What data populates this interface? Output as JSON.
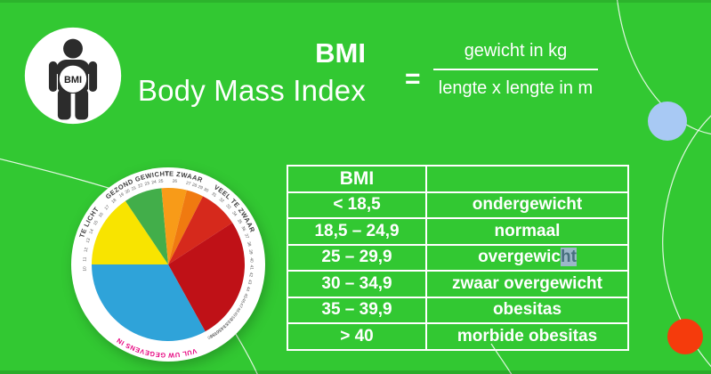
{
  "colors": {
    "background": "#32c832",
    "icon_person": "#2c2c2c",
    "decor_blue": "#a8c9f4",
    "decor_red": "#f53b0c",
    "highlight_bg": "#9bb7c8",
    "highlight_text": "#47707f",
    "pink": "#e6007e"
  },
  "header": {
    "icon_label": "BMI",
    "title_abbr": "BMI",
    "title_full": "Body Mass Index",
    "equals": "=",
    "formula_numerator": "gewicht in kg",
    "formula_denominator": "lengte x lengte in m"
  },
  "table": {
    "header": {
      "col1": "BMI",
      "col2": ""
    },
    "rows": [
      {
        "range": "< 18,5",
        "label": "ondergewicht",
        "label_highlight": ""
      },
      {
        "range": "18,5 – 24,9",
        "label": "normaal",
        "label_highlight": ""
      },
      {
        "range": "25 – 29,9",
        "label": "overgewic",
        "label_highlight": "ht"
      },
      {
        "range": "30 – 34,9",
        "label": "zwaar overgewicht",
        "label_highlight": ""
      },
      {
        "range": "35 – 39,9",
        "label": "obesitas",
        "label_highlight": ""
      },
      {
        "range": "> 40",
        "label": "morbide obesitas",
        "label_highlight": ""
      }
    ]
  },
  "wheel": {
    "segments": [
      {
        "name": "te-licht",
        "color": "#f8e400",
        "from": 124,
        "to": 180
      },
      {
        "name": "gezond-gewicht",
        "color": "#42ae4a",
        "from": 95,
        "to": 124
      },
      {
        "name": "te-zwaar-licht",
        "color": "#f89b18",
        "from": 76,
        "to": 95
      },
      {
        "name": "te-zwaar-donker",
        "color": "#f07a10",
        "from": 63,
        "to": 76
      },
      {
        "name": "veel-te-zwaar",
        "color": "#d6291c",
        "from": 33,
        "to": 63
      },
      {
        "name": "veel-te-zwaar-2",
        "color": "#bf1117",
        "from": -61,
        "to": 33
      },
      {
        "name": "invulzone",
        "color": "#2fa3d9",
        "from": 180,
        "to": 299
      }
    ],
    "ring_labels": [
      {
        "text": "TE LICHT",
        "angle": 152,
        "color": "#3c3c3c"
      },
      {
        "text": "GEZOND GEWICHT",
        "angle": 111,
        "color": "#3c3c3c"
      },
      {
        "text": "TE ZWAAR",
        "angle": 80,
        "color": "#3c3c3c"
      },
      {
        "text": "VEEL TE ZWAAR",
        "angle": 40,
        "color": "#3c3c3c"
      },
      {
        "text": "VUL UW GEGEVENS IN",
        "angle": 262,
        "color": "#e6007e"
      }
    ],
    "number_range": [
      10,
      60
    ],
    "number_anchors": [
      [
        10,
        183
      ],
      [
        19,
        124
      ],
      [
        25,
        95
      ],
      [
        27,
        76
      ],
      [
        30,
        63
      ],
      [
        35,
        31
      ],
      [
        40,
        3
      ],
      [
        45,
        -22
      ],
      [
        50,
        -40
      ],
      [
        55,
        -51
      ],
      [
        60,
        -60
      ]
    ]
  }
}
